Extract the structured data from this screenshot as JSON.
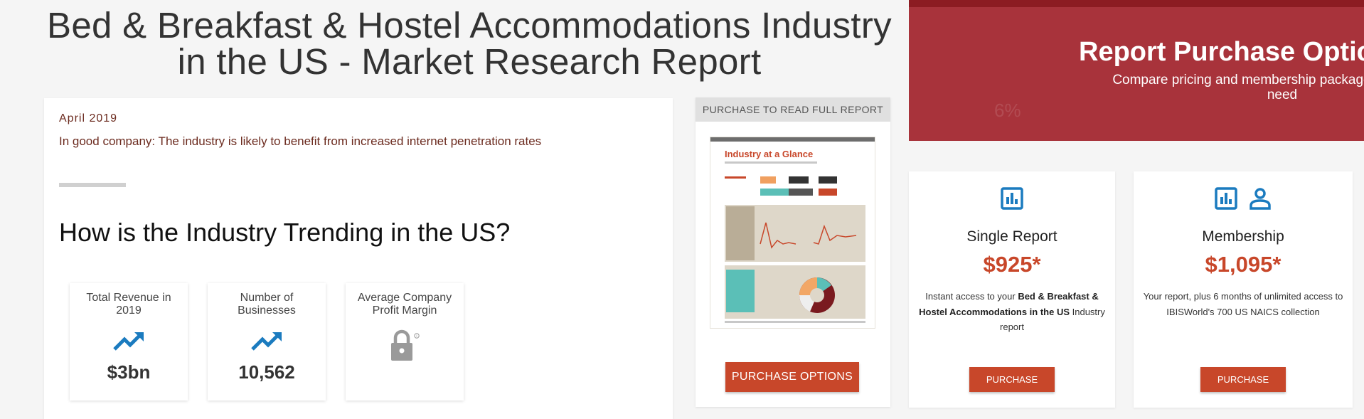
{
  "page": {
    "title_line1": "Bed & Breakfast & Hostel Accommodations Industry",
    "title_line2": "in the US - Market Research Report"
  },
  "overview": {
    "date": "April 2019",
    "snippet": "In good company: The industry is likely to benefit from increased internet penetration rates",
    "section_heading": "How is the Industry Trending in the US?"
  },
  "stats": [
    {
      "label": "Total Revenue in 2019",
      "value": "$3bn",
      "icon": "trending-up-icon"
    },
    {
      "label": "Number of Businesses",
      "value": "10,562",
      "icon": "trending-up-icon"
    },
    {
      "label": "Average Company Profit Margin",
      "value": "",
      "icon": "lock-icon"
    }
  ],
  "preview": {
    "header": "PURCHASE TO READ FULL REPORT",
    "doc_title": "Industry at a Glance",
    "button": "PURCHASE OPTIONS"
  },
  "purchase": {
    "title": "Report Purchase Optic",
    "subtitle_line1": "Compare pricing and membership packages to get the le",
    "subtitle_line2": "need",
    "single": {
      "name": "Single Report",
      "price": "$925*",
      "desc_before": "Instant access to your ",
      "desc_bold": "Bed & Breakfast & Hostel Accommodations in the US",
      "desc_after": " Industry report",
      "button": "PURCHASE"
    },
    "membership": {
      "name": "Membership",
      "price": "$1,095*",
      "desc": "Your report, plus 6 months of unlimited access to IBISWorld's 700 US NAICS collection",
      "button": "PURCHASE"
    }
  },
  "colors": {
    "brand_red": "#c8472a",
    "hero_red": "#a8333b",
    "icon_blue": "#1b7bbf",
    "lock_gray": "#9a9a9a"
  }
}
